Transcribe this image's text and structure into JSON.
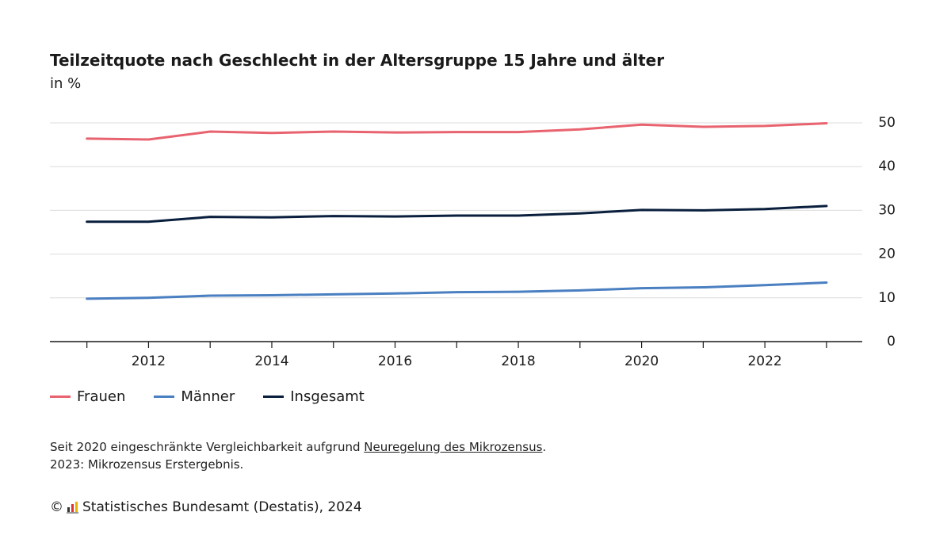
{
  "chart_data": {
    "type": "line",
    "title": "Teilzeitquote nach Geschlecht in der Altersgruppe 15 Jahre und älter",
    "subtitle": "in %",
    "x": [
      2011,
      2012,
      2013,
      2014,
      2015,
      2016,
      2017,
      2018,
      2019,
      2020,
      2021,
      2022,
      2023
    ],
    "series": [
      {
        "name": "Frauen",
        "color": "#e8636f",
        "values": [
          46.4,
          46.2,
          48.0,
          47.7,
          48.0,
          47.8,
          47.9,
          47.9,
          48.5,
          49.6,
          49.1,
          49.3,
          49.9
        ]
      },
      {
        "name": "Männer",
        "color": "#4a7fc1",
        "values": [
          9.8,
          10.0,
          10.5,
          10.6,
          10.8,
          11.0,
          11.3,
          11.4,
          11.7,
          12.2,
          12.4,
          12.9,
          13.5
        ]
      },
      {
        "name": "Insgesamt",
        "color": "#0a1f3d",
        "values": [
          27.4,
          27.4,
          28.5,
          28.4,
          28.7,
          28.6,
          28.8,
          28.8,
          29.3,
          30.1,
          30.0,
          30.3,
          31.0
        ]
      }
    ],
    "xlim": [
      2010.4,
      2023.58
    ],
    "xticks": [
      2012,
      2014,
      2016,
      2018,
      2020,
      2022
    ],
    "xminorticks": [
      2011,
      2013,
      2015,
      2017,
      2019,
      2021,
      2023
    ],
    "ylim": [
      0,
      50
    ],
    "yticks": [
      0,
      10,
      20,
      30,
      40,
      50
    ],
    "grid": true,
    "legend": "bottom-left"
  },
  "notes": {
    "line1_before": "Seit 2020 eingeschränkte Vergleichbarkeit aufgrund ",
    "line1_link": "Neuregelung des Mikrozensus",
    "line1_after": ".",
    "line2": "2023: Mikrozensus Erstergebnis."
  },
  "source": {
    "copyright": "©",
    "text": "Statistisches Bundesamt (Destatis), 2024"
  }
}
